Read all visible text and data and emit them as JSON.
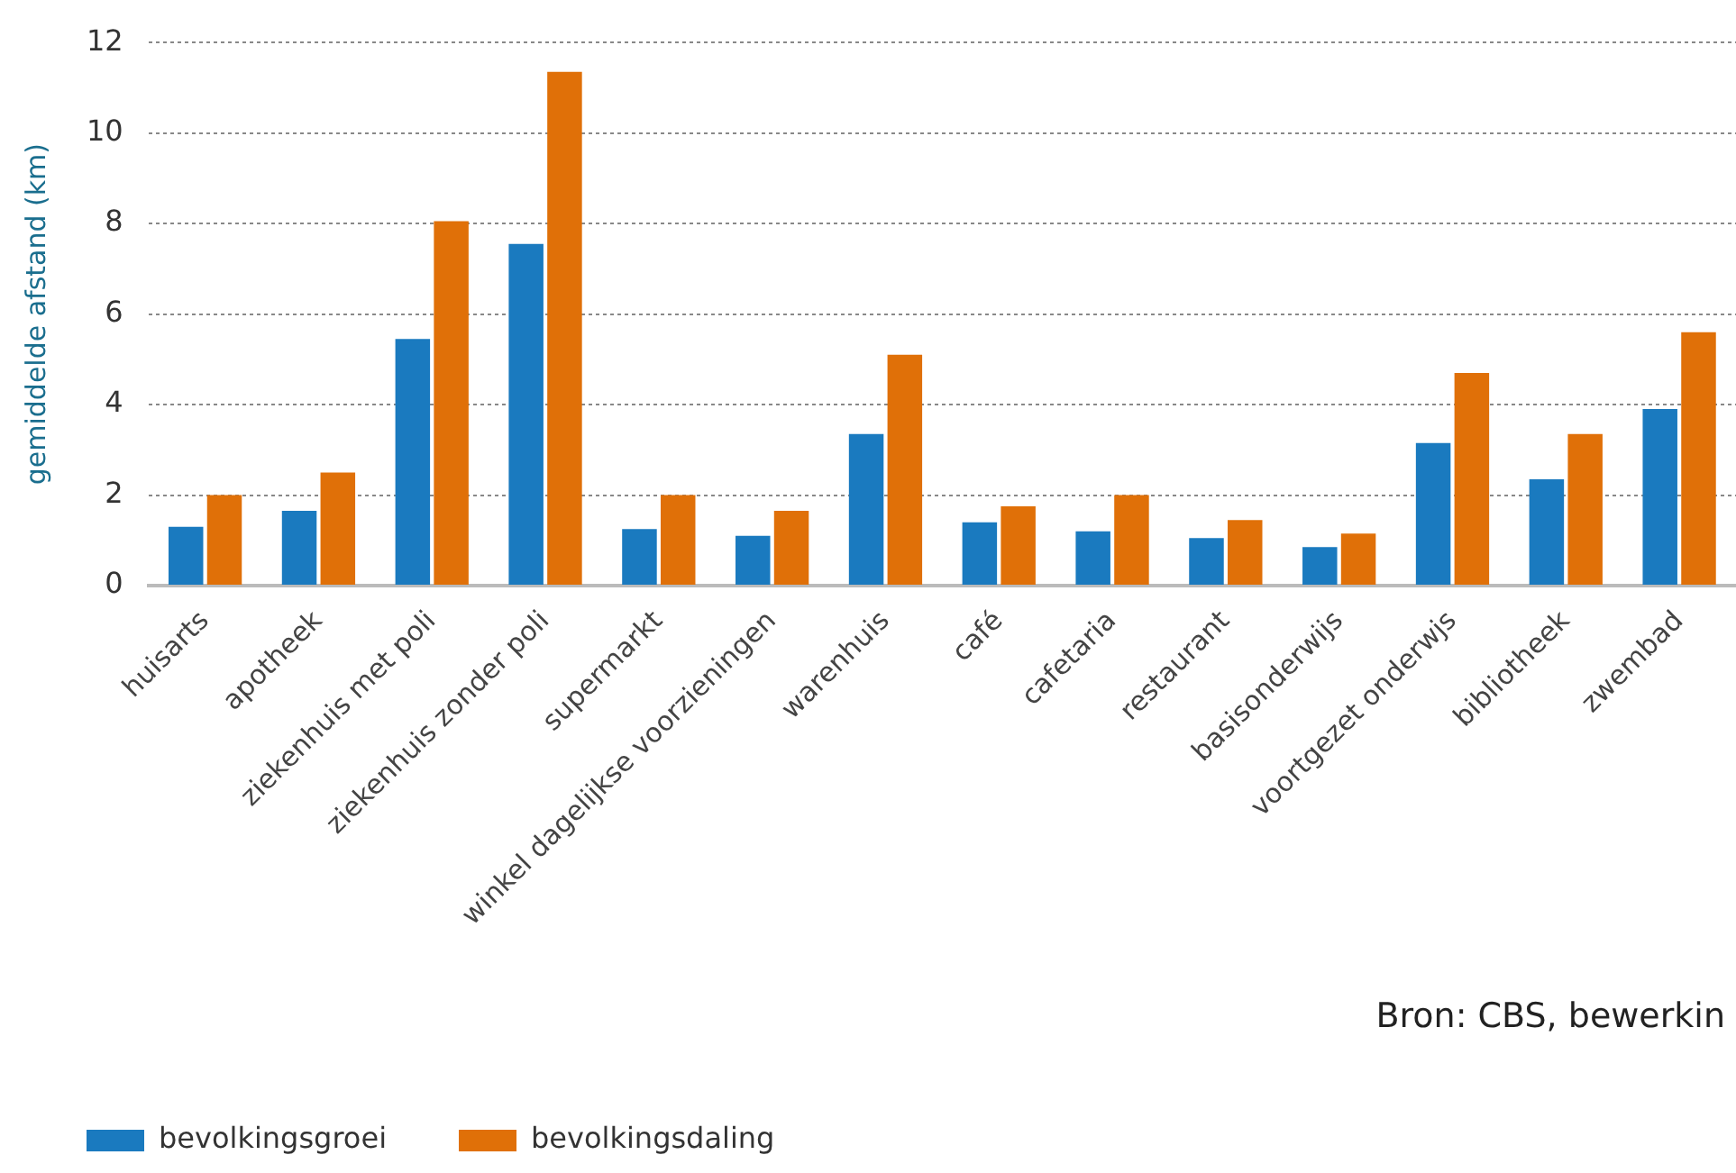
{
  "chart_data": {
    "type": "bar",
    "ylabel": "gemiddelde afstand (km)",
    "categories": [
      "huisarts",
      "apotheek",
      "ziekenhuis met poli",
      "ziekenhuis zonder poli",
      "supermarkt",
      "winkel dagelijkse voorzieningen",
      "warenhuis",
      "café",
      "cafetaria",
      "restaurant",
      "basisonderwijs",
      "voortgezet onderwjs",
      "bibliotheek",
      "zwembad"
    ],
    "series": [
      {
        "name": "bevolkingsgroei",
        "color": "#1a7abf",
        "values": [
          1.3,
          1.65,
          5.45,
          7.55,
          1.25,
          1.1,
          3.35,
          1.4,
          1.2,
          1.05,
          0.85,
          3.15,
          2.35,
          3.9
        ]
      },
      {
        "name": "bevolkingsdaling",
        "color": "#e07008",
        "values": [
          2.0,
          2.5,
          8.05,
          11.35,
          2.0,
          1.65,
          5.1,
          1.75,
          2.0,
          1.45,
          1.15,
          4.7,
          3.35,
          5.6
        ]
      }
    ],
    "ylim": [
      0,
      12
    ],
    "yticks": [
      0,
      2,
      4,
      6,
      8,
      10,
      12
    ],
    "grid": "y",
    "legend": "bottom",
    "annotations": [
      "Bron: CBS, bewerkin"
    ]
  }
}
